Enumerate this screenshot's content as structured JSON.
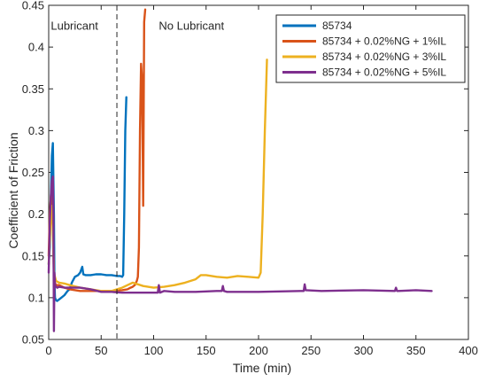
{
  "chart_data": {
    "type": "line",
    "title": "",
    "xlabel": "Time (min)",
    "ylabel": "Coefficient of Friction",
    "xlim": [
      0,
      400
    ],
    "ylim": [
      0.05,
      0.45
    ],
    "xticks": [
      0,
      50,
      100,
      150,
      200,
      250,
      300,
      350,
      400
    ],
    "yticks": [
      0.05,
      0.1,
      0.15,
      0.2,
      0.25,
      0.3,
      0.35,
      0.4,
      0.45
    ],
    "xtick_labels": [
      "0",
      "50",
      "100",
      "150",
      "200",
      "250",
      "300",
      "350",
      "400"
    ],
    "ytick_labels": [
      "0.05",
      "0.1",
      "0.15",
      "0.2",
      "0.25",
      "0.3",
      "0.35",
      "0.4",
      "0.45"
    ],
    "grid": false,
    "legend_position": "top-right",
    "divider": {
      "x": 65,
      "style": "dashed"
    },
    "annotations": [
      {
        "text": "Lubricant",
        "x": 2,
        "y": 0.425
      },
      {
        "text": "No Lubricant",
        "x": 105,
        "y": 0.425
      }
    ],
    "series": [
      {
        "name": "85734",
        "color": "#0072BD",
        "x": [
          0,
          1,
          2,
          3,
          4,
          5,
          5.5,
          6,
          7,
          8,
          10,
          12,
          15,
          18,
          20,
          22,
          25,
          28,
          30,
          32,
          33,
          35,
          40,
          45,
          50,
          55,
          60,
          65,
          68,
          70,
          71,
          72,
          73,
          74
        ],
        "y": [
          0.14,
          0.16,
          0.22,
          0.27,
          0.285,
          0.2,
          0.12,
          0.1,
          0.097,
          0.096,
          0.098,
          0.1,
          0.103,
          0.108,
          0.11,
          0.118,
          0.125,
          0.127,
          0.13,
          0.137,
          0.128,
          0.127,
          0.127,
          0.128,
          0.128,
          0.127,
          0.127,
          0.126,
          0.126,
          0.125,
          0.127,
          0.2,
          0.3,
          0.34
        ]
      },
      {
        "name": "85734 + 0.02%NG + 1%IL",
        "color": "#D95319",
        "x": [
          0,
          1,
          2,
          3,
          4,
          5,
          7,
          10,
          15,
          20,
          30,
          40,
          50,
          60,
          70,
          75,
          78,
          80,
          82,
          84,
          85,
          86,
          87,
          88,
          89,
          90,
          91,
          92
        ],
        "y": [
          0.15,
          0.2,
          0.22,
          0.235,
          0.2,
          0.12,
          0.115,
          0.115,
          0.112,
          0.11,
          0.108,
          0.108,
          0.108,
          0.108,
          0.109,
          0.11,
          0.112,
          0.113,
          0.115,
          0.12,
          0.125,
          0.16,
          0.3,
          0.38,
          0.36,
          0.21,
          0.43,
          0.445
        ]
      },
      {
        "name": "85734 + 0.02%NG + 3%IL",
        "color": "#EDB120",
        "x": [
          0,
          1,
          2,
          3,
          4,
          5,
          7,
          10,
          15,
          20,
          30,
          40,
          50,
          60,
          70,
          80,
          90,
          100,
          110,
          120,
          130,
          140,
          145,
          150,
          160,
          170,
          180,
          190,
          200,
          202,
          204,
          206,
          208
        ],
        "y": [
          0.14,
          0.17,
          0.2,
          0.21,
          0.18,
          0.13,
          0.12,
          0.118,
          0.117,
          0.115,
          0.112,
          0.11,
          0.108,
          0.108,
          0.112,
          0.118,
          0.114,
          0.112,
          0.113,
          0.115,
          0.118,
          0.122,
          0.127,
          0.127,
          0.125,
          0.124,
          0.126,
          0.125,
          0.124,
          0.13,
          0.2,
          0.3,
          0.385
        ]
      },
      {
        "name": "85734 + 0.02%NG + 5%IL",
        "color": "#7E2F8E",
        "x": [
          0,
          1,
          2,
          3,
          4,
          4.5,
          5,
          5.5,
          6,
          8,
          10,
          15,
          20,
          30,
          40,
          50,
          60,
          70,
          80,
          90,
          100,
          104,
          105,
          106,
          110,
          120,
          140,
          160,
          165,
          166,
          167,
          170,
          200,
          240,
          243,
          244,
          245,
          260,
          300,
          330,
          331,
          332,
          333,
          350,
          365
        ],
        "y": [
          0.13,
          0.19,
          0.22,
          0.24,
          0.245,
          0.2,
          0.06,
          0.13,
          0.115,
          0.112,
          0.113,
          0.112,
          0.112,
          0.112,
          0.11,
          0.107,
          0.107,
          0.106,
          0.106,
          0.106,
          0.106,
          0.106,
          0.115,
          0.106,
          0.108,
          0.107,
          0.107,
          0.108,
          0.108,
          0.114,
          0.108,
          0.107,
          0.107,
          0.108,
          0.108,
          0.116,
          0.109,
          0.108,
          0.109,
          0.108,
          0.112,
          0.108,
          0.108,
          0.109,
          0.108
        ]
      }
    ]
  }
}
